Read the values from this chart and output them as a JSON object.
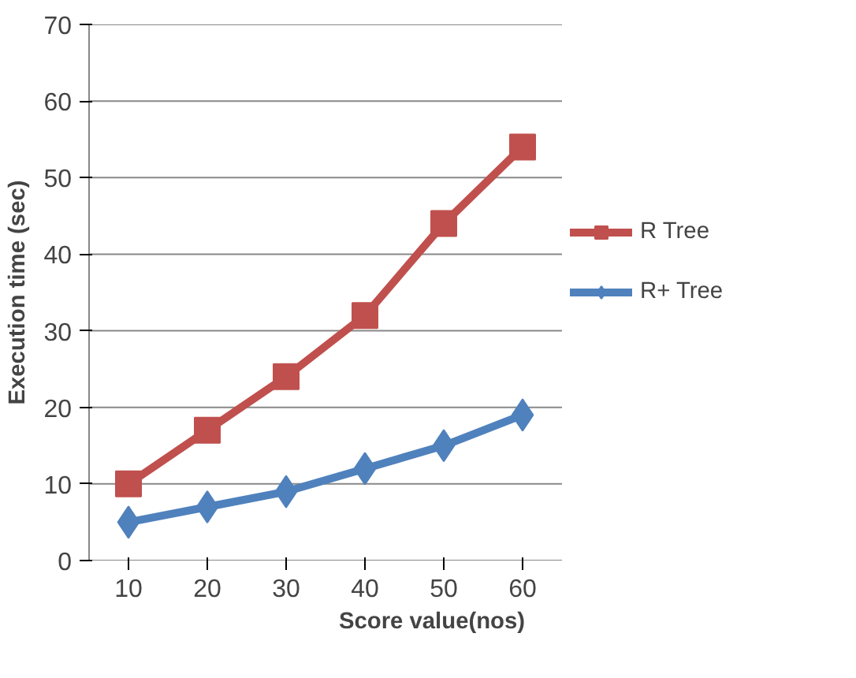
{
  "chart_data": {
    "type": "line",
    "xlabel": "Score value(nos)",
    "ylabel": "Execution time (sec)",
    "categories": [
      "10",
      "20",
      "30",
      "40",
      "50",
      "60"
    ],
    "series": [
      {
        "name": "R Tree",
        "color": "#c0504d",
        "marker": "square",
        "values": [
          10,
          17,
          24,
          32,
          44,
          54
        ]
      },
      {
        "name": "R+ Tree",
        "color": "#4f81bd",
        "marker": "diamond",
        "values": [
          5,
          7,
          9,
          12,
          15,
          19
        ]
      }
    ],
    "ylim": [
      0,
      70
    ],
    "yticks": [
      0,
      10,
      20,
      30,
      40,
      50,
      60,
      70
    ],
    "grid": "y",
    "legend": "right",
    "line_style": "solid"
  }
}
